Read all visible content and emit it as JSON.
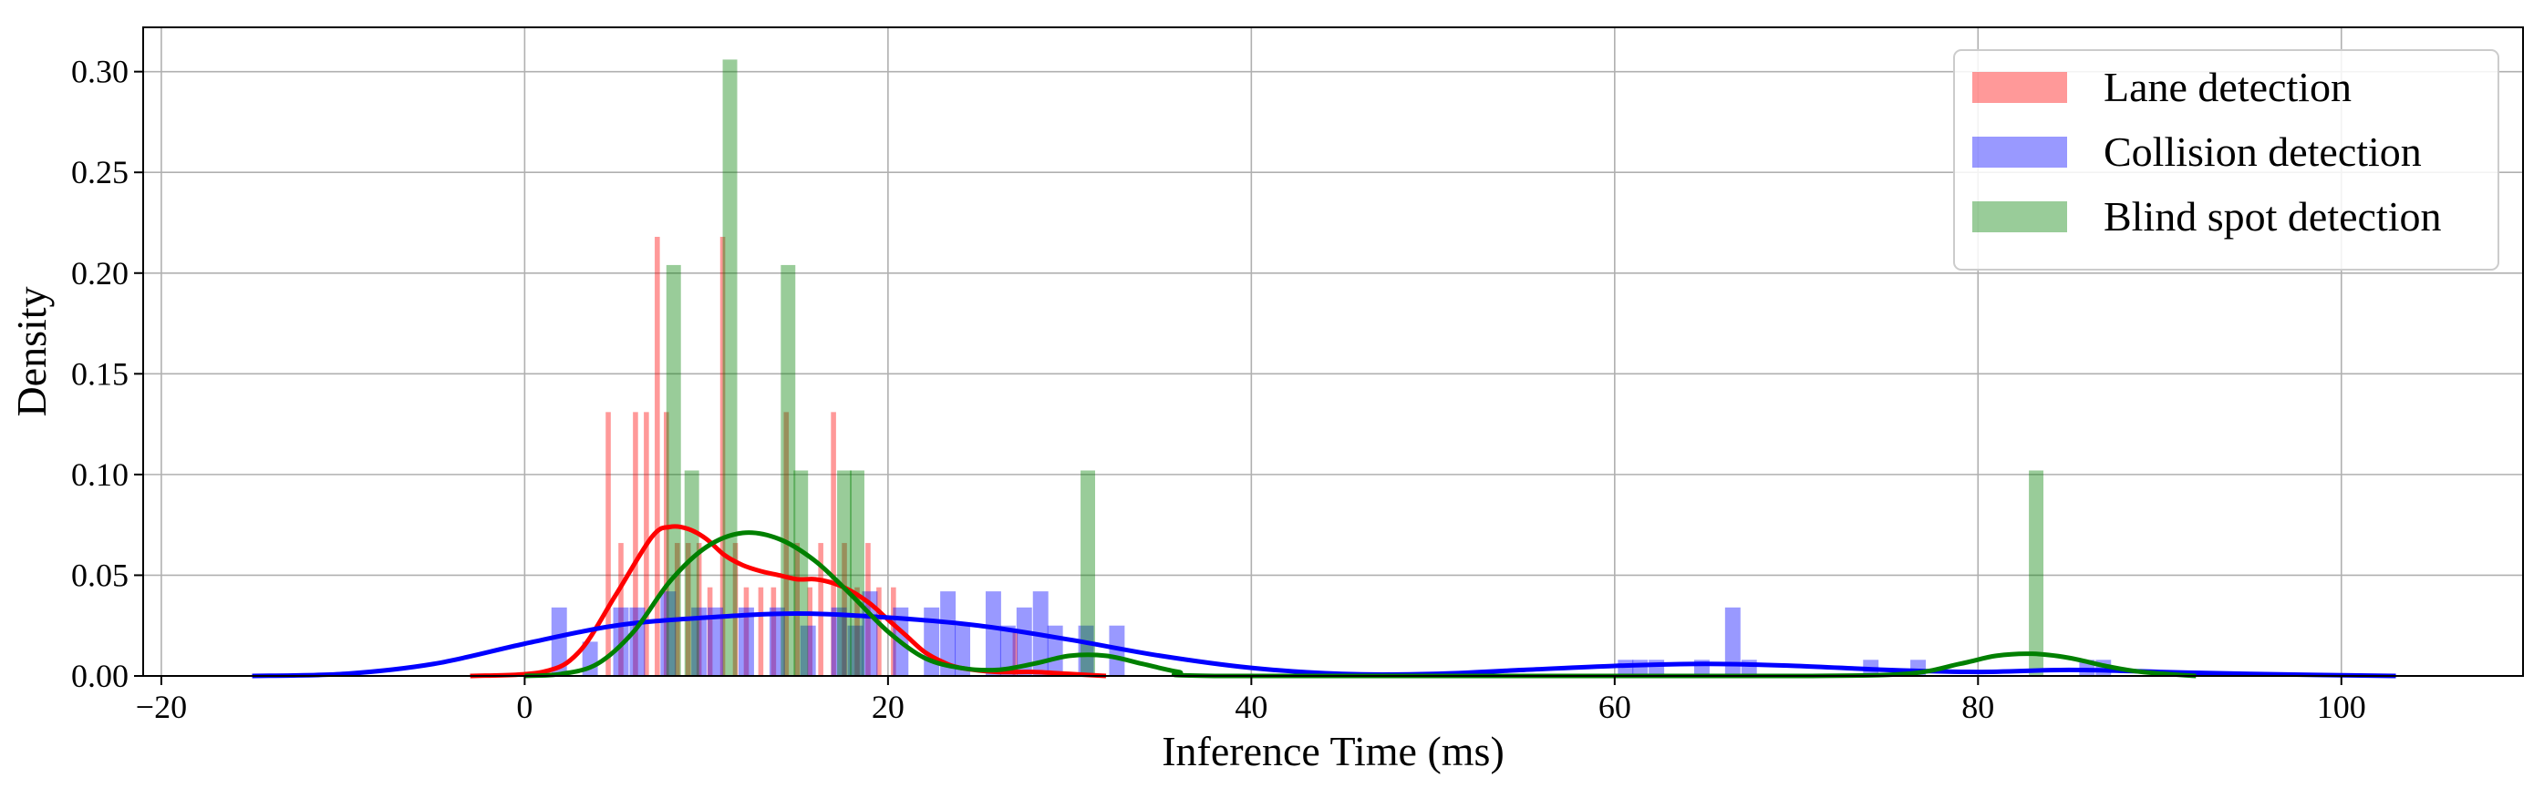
{
  "chart_data": {
    "type": "histogram-kde",
    "xlabel": "Inference Time (ms)",
    "ylabel": "Density",
    "xlim": [
      -21,
      110
    ],
    "ylim": [
      0,
      0.322
    ],
    "xticks": [
      -20,
      0,
      20,
      40,
      60,
      80,
      100
    ],
    "yticks": [
      0.0,
      0.05,
      0.1,
      0.15,
      0.2,
      0.25,
      0.3
    ],
    "xtick_labels": [
      "−20",
      "0",
      "20",
      "40",
      "60",
      "80",
      "100"
    ],
    "ytick_labels": [
      "0.00",
      "0.05",
      "0.10",
      "0.15",
      "0.20",
      "0.25",
      "0.30"
    ],
    "grid": true,
    "legend_position": "top-right",
    "series": [
      {
        "name": "Lane detection",
        "color": "#ff0000",
        "bar_alpha": 0.4,
        "bin_width": 0.28,
        "bins": [
          [
            4.6,
            0.131
          ],
          [
            5.3,
            0.066
          ],
          [
            6.1,
            0.131
          ],
          [
            6.7,
            0.131
          ],
          [
            7.3,
            0.218
          ],
          [
            7.8,
            0.131
          ],
          [
            8.4,
            0.066
          ],
          [
            9.0,
            0.066
          ],
          [
            9.6,
            0.066
          ],
          [
            10.2,
            0.044
          ],
          [
            10.9,
            0.218
          ],
          [
            11.6,
            0.066
          ],
          [
            12.2,
            0.044
          ],
          [
            13.0,
            0.044
          ],
          [
            13.7,
            0.044
          ],
          [
            14.4,
            0.131
          ],
          [
            15.0,
            0.066
          ],
          [
            15.7,
            0.044
          ],
          [
            16.3,
            0.066
          ],
          [
            17.0,
            0.131
          ],
          [
            17.6,
            0.066
          ],
          [
            18.3,
            0.044
          ],
          [
            18.9,
            0.066
          ],
          [
            19.5,
            0.044
          ],
          [
            20.3,
            0.044
          ],
          [
            27.0,
            0.022
          ]
        ],
        "kde": [
          [
            -3,
            0.0
          ],
          [
            1,
            0.002
          ],
          [
            3,
            0.012
          ],
          [
            5,
            0.04
          ],
          [
            7,
            0.069
          ],
          [
            8,
            0.074
          ],
          [
            9,
            0.073
          ],
          [
            10,
            0.068
          ],
          [
            11,
            0.06
          ],
          [
            12,
            0.055
          ],
          [
            13,
            0.052
          ],
          [
            14,
            0.05
          ],
          [
            15,
            0.048
          ],
          [
            16,
            0.048
          ],
          [
            17,
            0.046
          ],
          [
            18,
            0.042
          ],
          [
            19,
            0.036
          ],
          [
            20,
            0.028
          ],
          [
            21,
            0.02
          ],
          [
            22,
            0.012
          ],
          [
            23,
            0.007
          ],
          [
            24,
            0.004
          ],
          [
            26,
            0.002
          ],
          [
            28,
            0.002
          ],
          [
            30,
            0.001
          ],
          [
            32,
            0.0
          ]
        ]
      },
      {
        "name": "Collision detection",
        "color": "#0000ff",
        "bar_alpha": 0.4,
        "bin_width": 0.85,
        "bins": [
          [
            1.9,
            0.034
          ],
          [
            3.6,
            0.017
          ],
          [
            5.3,
            0.034
          ],
          [
            6.2,
            0.034
          ],
          [
            7.9,
            0.042
          ],
          [
            9.6,
            0.034
          ],
          [
            10.5,
            0.034
          ],
          [
            12.2,
            0.034
          ],
          [
            13.9,
            0.034
          ],
          [
            15.6,
            0.025
          ],
          [
            17.3,
            0.034
          ],
          [
            18.2,
            0.025
          ],
          [
            19.0,
            0.042
          ],
          [
            20.7,
            0.034
          ],
          [
            22.4,
            0.034
          ],
          [
            23.3,
            0.042
          ],
          [
            24.1,
            0.025
          ],
          [
            25.8,
            0.042
          ],
          [
            26.6,
            0.025
          ],
          [
            27.5,
            0.034
          ],
          [
            28.4,
            0.042
          ],
          [
            29.2,
            0.025
          ],
          [
            30.9,
            0.025
          ],
          [
            32.6,
            0.025
          ],
          [
            60.6,
            0.008
          ],
          [
            61.4,
            0.008
          ],
          [
            62.3,
            0.008
          ],
          [
            64.8,
            0.008
          ],
          [
            66.5,
            0.034
          ],
          [
            67.4,
            0.008
          ],
          [
            74.1,
            0.008
          ],
          [
            76.7,
            0.008
          ],
          [
            86.0,
            0.008
          ],
          [
            86.9,
            0.008
          ]
        ],
        "kde": [
          [
            -15,
            0.0
          ],
          [
            -10,
            0.001
          ],
          [
            -5,
            0.006
          ],
          [
            0,
            0.016
          ],
          [
            5,
            0.025
          ],
          [
            10,
            0.029
          ],
          [
            15,
            0.031
          ],
          [
            20,
            0.029
          ],
          [
            25,
            0.025
          ],
          [
            30,
            0.018
          ],
          [
            35,
            0.01
          ],
          [
            40,
            0.004
          ],
          [
            45,
            0.001
          ],
          [
            50,
            0.001
          ],
          [
            55,
            0.003
          ],
          [
            60,
            0.005
          ],
          [
            65,
            0.006
          ],
          [
            70,
            0.005
          ],
          [
            75,
            0.003
          ],
          [
            80,
            0.002
          ],
          [
            85,
            0.003
          ],
          [
            90,
            0.002
          ],
          [
            95,
            0.001
          ],
          [
            103,
            0.0
          ]
        ]
      },
      {
        "name": "Blind spot detection",
        "color": "#008000",
        "bar_alpha": 0.4,
        "bin_width": 0.8,
        "bins": [
          [
            8.2,
            0.204
          ],
          [
            9.2,
            0.102
          ],
          [
            11.3,
            0.306
          ],
          [
            14.5,
            0.204
          ],
          [
            15.2,
            0.102
          ],
          [
            17.6,
            0.102
          ],
          [
            18.3,
            0.102
          ],
          [
            31.0,
            0.102
          ],
          [
            83.2,
            0.102
          ]
        ],
        "kde": [
          [
            0,
            0.0
          ],
          [
            2,
            0.001
          ],
          [
            4,
            0.006
          ],
          [
            6,
            0.022
          ],
          [
            8,
            0.047
          ],
          [
            10,
            0.064
          ],
          [
            12,
            0.071
          ],
          [
            14,
            0.068
          ],
          [
            16,
            0.057
          ],
          [
            18,
            0.04
          ],
          [
            20,
            0.022
          ],
          [
            22,
            0.009
          ],
          [
            24,
            0.004
          ],
          [
            26,
            0.003
          ],
          [
            28,
            0.006
          ],
          [
            30,
            0.01
          ],
          [
            32,
            0.01
          ],
          [
            34,
            0.006
          ],
          [
            36,
            0.002
          ],
          [
            38,
            0.0
          ],
          [
            60,
            0.0
          ],
          [
            70,
            0.0
          ],
          [
            76,
            0.001
          ],
          [
            79,
            0.006
          ],
          [
            81,
            0.01
          ],
          [
            83,
            0.011
          ],
          [
            85,
            0.009
          ],
          [
            87,
            0.005
          ],
          [
            89,
            0.002
          ],
          [
            92,
            0.0
          ]
        ]
      }
    ]
  }
}
